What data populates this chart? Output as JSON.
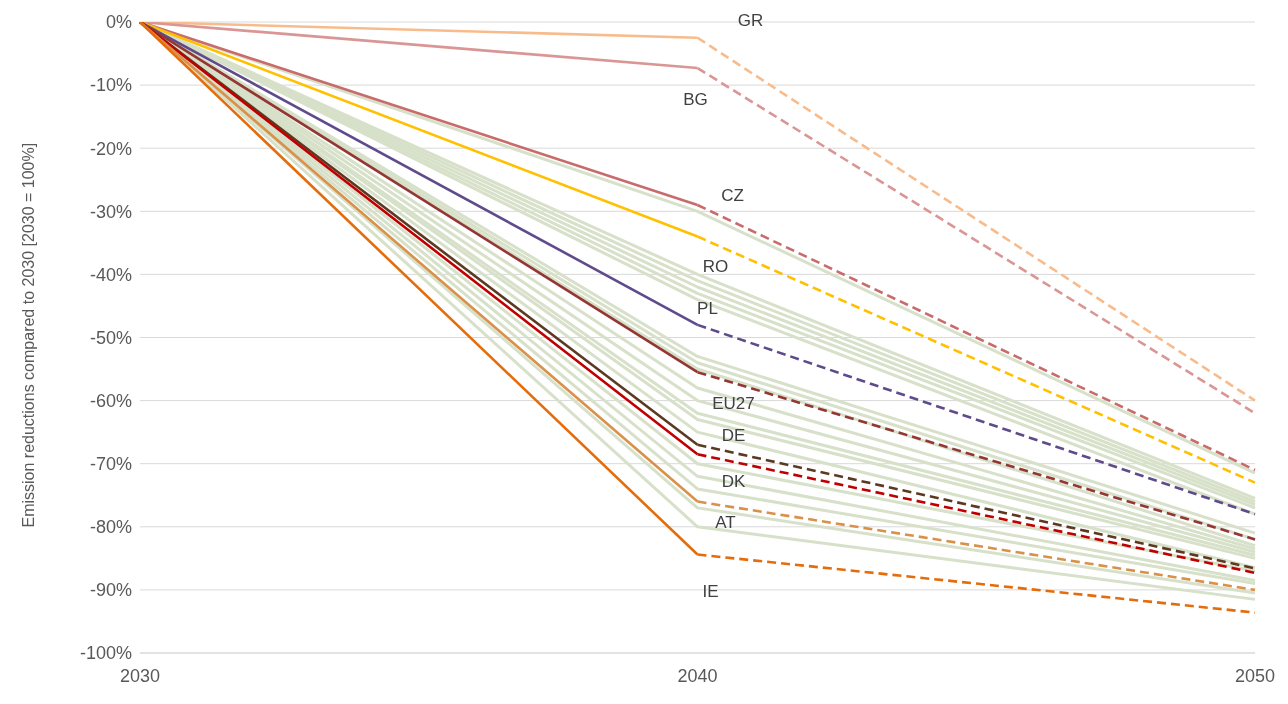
{
  "chart_data": {
    "type": "line",
    "ylabel": "Emission reductions compared to 2030 [2030 = 100%]",
    "categories": [
      "2030",
      "2040",
      "2050"
    ],
    "ylim": [
      -100,
      0
    ],
    "yticks": [
      {
        "value": -100,
        "label": "-100%"
      },
      {
        "value": -90,
        "label": "-90%"
      },
      {
        "value": -80,
        "label": "-80%"
      },
      {
        "value": -70,
        "label": "-70%"
      },
      {
        "value": -60,
        "label": "-60%"
      },
      {
        "value": -50,
        "label": "-50%"
      },
      {
        "value": -40,
        "label": "-40%"
      },
      {
        "value": -30,
        "label": "-30%"
      },
      {
        "value": -20,
        "label": "-20%"
      },
      {
        "value": -10,
        "label": "-10%"
      },
      {
        "value": 0,
        "label": "0%"
      }
    ],
    "grid": "y",
    "legend": false,
    "marker": "none",
    "series": [
      {
        "color": "#d7e0c8",
        "values": [
          0,
          -30,
          -71.5
        ]
      },
      {
        "color": "#d7e0c8",
        "values": [
          0,
          -40,
          -75.5
        ]
      },
      {
        "color": "#d7e0c8",
        "values": [
          0,
          -41,
          -76
        ]
      },
      {
        "color": "#d7e0c8",
        "values": [
          0,
          -42,
          -76.5
        ]
      },
      {
        "color": "#d7e0c8",
        "values": [
          0,
          -43,
          -77
        ]
      },
      {
        "color": "#d7e0c8",
        "values": [
          0,
          -44,
          -78
        ]
      },
      {
        "color": "#d7e0c8",
        "values": [
          0,
          -53,
          -81
        ]
      },
      {
        "color": "#d7e0c8",
        "values": [
          0,
          -54,
          -82
        ]
      },
      {
        "color": "#d7e0c8",
        "values": [
          0,
          -55,
          -83
        ]
      },
      {
        "color": "#d7e0c8",
        "values": [
          0,
          -58,
          -83.5
        ]
      },
      {
        "color": "#d7e0c8",
        "values": [
          0,
          -60,
          -84
        ]
      },
      {
        "color": "#d7e0c8",
        "values": [
          0,
          -62,
          -84.5
        ]
      },
      {
        "color": "#d7e0c8",
        "values": [
          0,
          -63,
          -85
        ]
      },
      {
        "color": "#d7e0c8",
        "values": [
          0,
          -65,
          -86.5
        ]
      },
      {
        "color": "#d7e0c8",
        "values": [
          0,
          -70,
          -87
        ]
      },
      {
        "color": "#d7e0c8",
        "values": [
          0,
          -72,
          -88.5
        ]
      },
      {
        "color": "#d7e0c8",
        "values": [
          0,
          -74,
          -89
        ]
      },
      {
        "color": "#d7e0c8",
        "values": [
          0,
          -77,
          -90.5
        ]
      },
      {
        "color": "#d7e0c8",
        "values": [
          0,
          -80,
          -91.5
        ]
      },
      {
        "name": "GR",
        "color": "#f8bc8c",
        "values": [
          0,
          -2.5,
          null
        ]
      },
      {
        "color": "#f8bc8c",
        "line_style": "dashed",
        "values": [
          null,
          -2.5,
          -60
        ]
      },
      {
        "name": "BG",
        "color": "#d99694",
        "values": [
          0,
          -7.3,
          null
        ]
      },
      {
        "color": "#d99694",
        "line_style": "dashed",
        "values": [
          null,
          -7.3,
          -62
        ]
      },
      {
        "name": "CZ",
        "color": "#c96b6b",
        "values": [
          0,
          -29,
          null
        ]
      },
      {
        "color": "#c96b6b",
        "line_style": "dashed",
        "values": [
          null,
          -29,
          -71
        ]
      },
      {
        "name": "RO",
        "color": "#ffc000",
        "values": [
          0,
          -34,
          null
        ]
      },
      {
        "color": "#ffc000",
        "line_style": "dashed",
        "values": [
          null,
          -34,
          -73
        ]
      },
      {
        "name": "PL",
        "color": "#5f4b8b",
        "values": [
          0,
          -48,
          null
        ]
      },
      {
        "color": "#5f4b8b",
        "line_style": "dashed",
        "values": [
          null,
          -48,
          -78
        ]
      },
      {
        "name": "EU27",
        "color": "#943634",
        "values": [
          0,
          -55.5,
          null
        ]
      },
      {
        "color": "#943634",
        "line_style": "dashed",
        "values": [
          null,
          -55.5,
          -82
        ]
      },
      {
        "name": "DE",
        "color": "#5c3a21",
        "values": [
          0,
          -67,
          null
        ]
      },
      {
        "color": "#5c3a21",
        "line_style": "dashed",
        "values": [
          null,
          -67,
          -86.6
        ]
      },
      {
        "name": "DK",
        "color": "#c00000",
        "values": [
          0,
          -68.5,
          null
        ]
      },
      {
        "color": "#c00000",
        "line_style": "dashed",
        "values": [
          null,
          -68.5,
          -87.3
        ]
      },
      {
        "name": "AT",
        "color": "#d9914a",
        "values": [
          0,
          -76,
          null
        ]
      },
      {
        "color": "#d9914a",
        "line_style": "dashed",
        "values": [
          null,
          -76,
          -90
        ]
      },
      {
        "name": "IE",
        "color": "#e46c0a",
        "values": [
          0,
          -84.4,
          null
        ]
      },
      {
        "color": "#e46c0a",
        "line_style": "dashed",
        "values": [
          null,
          -84.4,
          -93.6
        ]
      }
    ]
  }
}
